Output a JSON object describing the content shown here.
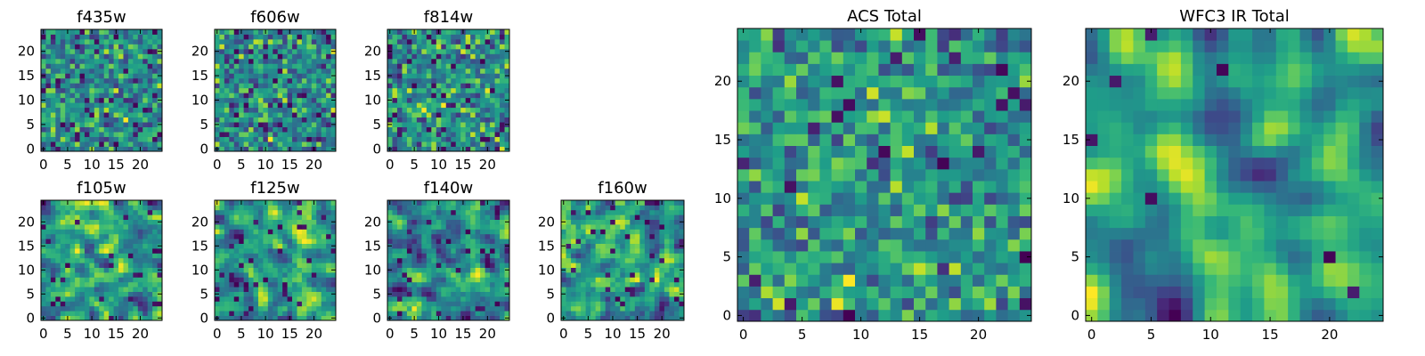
{
  "chart_data": [
    {
      "type": "heatmap",
      "title": "f435w",
      "panel_kind": "small",
      "grid_size": 25,
      "seed": 11,
      "smoothing": 0,
      "low_fraction": 0.06,
      "xticks": [
        0,
        5,
        10,
        15,
        20
      ],
      "yticks": [
        0,
        5,
        10,
        15,
        20
      ],
      "xlim": [
        -0.5,
        24.5
      ],
      "ylim": [
        -0.5,
        24.5
      ],
      "colormap": "viridis"
    },
    {
      "type": "heatmap",
      "title": "f606w",
      "panel_kind": "small",
      "grid_size": 25,
      "seed": 23,
      "smoothing": 0,
      "low_fraction": 0.06,
      "xticks": [
        0,
        5,
        10,
        15,
        20
      ],
      "yticks": [
        0,
        5,
        10,
        15,
        20
      ],
      "xlim": [
        -0.5,
        24.5
      ],
      "ylim": [
        -0.5,
        24.5
      ],
      "colormap": "viridis"
    },
    {
      "type": "heatmap",
      "title": "f814w",
      "panel_kind": "small",
      "grid_size": 25,
      "seed": 37,
      "smoothing": 0,
      "low_fraction": 0.07,
      "xticks": [
        0,
        5,
        10,
        15,
        20
      ],
      "yticks": [
        0,
        5,
        10,
        15,
        20
      ],
      "xlim": [
        -0.5,
        24.5
      ],
      "ylim": [
        -0.5,
        24.5
      ],
      "colormap": "viridis"
    },
    {
      "type": "heatmap",
      "title": "f105w",
      "panel_kind": "small",
      "grid_size": 25,
      "seed": 41,
      "smoothing": 1,
      "low_fraction": 0.04,
      "xticks": [
        0,
        5,
        10,
        15,
        20
      ],
      "yticks": [
        0,
        5,
        10,
        15,
        20
      ],
      "xlim": [
        -0.5,
        24.5
      ],
      "ylim": [
        -0.5,
        24.5
      ],
      "colormap": "viridis"
    },
    {
      "type": "heatmap",
      "title": "f125w",
      "panel_kind": "small",
      "grid_size": 25,
      "seed": 53,
      "smoothing": 1,
      "low_fraction": 0.04,
      "xticks": [
        0,
        5,
        10,
        15,
        20
      ],
      "yticks": [
        0,
        5,
        10,
        15,
        20
      ],
      "xlim": [
        -0.5,
        24.5
      ],
      "ylim": [
        -0.5,
        24.5
      ],
      "colormap": "viridis"
    },
    {
      "type": "heatmap",
      "title": "f140w",
      "panel_kind": "small",
      "grid_size": 25,
      "seed": 67,
      "smoothing": 1,
      "low_fraction": 0.04,
      "xticks": [
        0,
        5,
        10,
        15,
        20
      ],
      "yticks": [
        0,
        5,
        10,
        15,
        20
      ],
      "xlim": [
        -0.5,
        24.5
      ],
      "ylim": [
        -0.5,
        24.5
      ],
      "colormap": "viridis"
    },
    {
      "type": "heatmap",
      "title": "f160w",
      "panel_kind": "small",
      "grid_size": 25,
      "seed": 79,
      "smoothing": 1,
      "low_fraction": 0.04,
      "xticks": [
        0,
        5,
        10,
        15,
        20
      ],
      "yticks": [
        0,
        5,
        10,
        15,
        20
      ],
      "xlim": [
        -0.5,
        24.5
      ],
      "ylim": [
        -0.5,
        24.5
      ],
      "colormap": "viridis"
    },
    {
      "type": "heatmap",
      "title": "ACS Total",
      "panel_kind": "large",
      "grid_size": 25,
      "seed": 97,
      "smoothing": 0,
      "low_fraction": 0.03,
      "xticks": [
        0,
        5,
        10,
        15,
        20
      ],
      "yticks": [
        0,
        5,
        10,
        15,
        20
      ],
      "xlim": [
        -0.5,
        24.5
      ],
      "ylim": [
        -0.5,
        24.5
      ],
      "colormap": "viridis"
    },
    {
      "type": "heatmap",
      "title": "WFC3 IR Total",
      "panel_kind": "large",
      "grid_size": 25,
      "seed": 113,
      "smoothing": 2,
      "low_fraction": 0.02,
      "xticks": [
        0,
        5,
        10,
        15,
        20
      ],
      "yticks": [
        0,
        5,
        10,
        15,
        20
      ],
      "xlim": [
        -0.5,
        24.5
      ],
      "ylim": [
        -0.5,
        24.5
      ],
      "colormap": "viridis"
    }
  ]
}
